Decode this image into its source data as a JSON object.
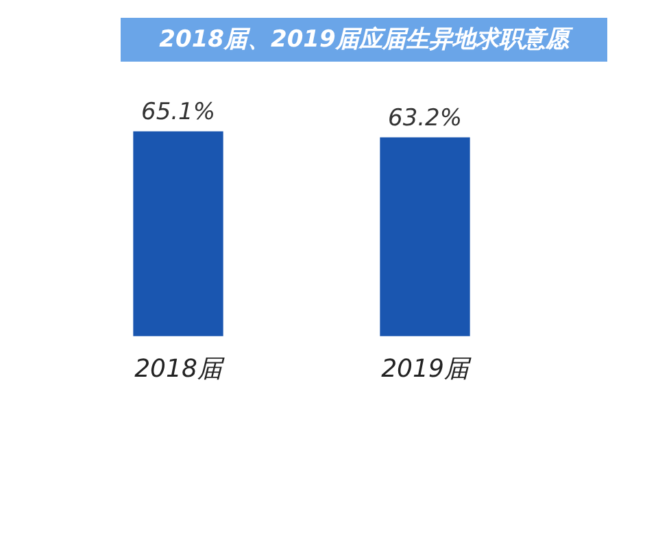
{
  "chart_data": {
    "type": "bar",
    "title": "2018届、2019届应届生异地求职意愿",
    "categories": [
      "2018届",
      "2019届"
    ],
    "values": [
      65.1,
      63.2
    ],
    "value_labels": [
      "65.1%",
      "63.2%"
    ],
    "color": "#1a56b0",
    "grid": false,
    "legend": false
  }
}
